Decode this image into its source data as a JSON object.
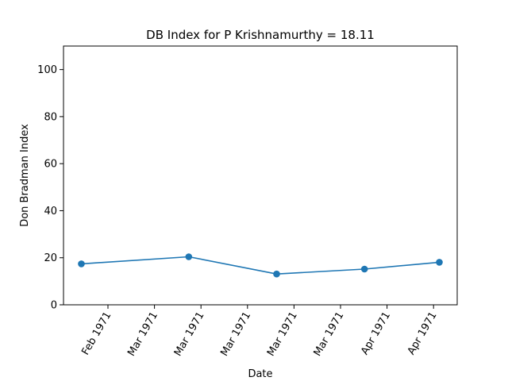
{
  "chart_data": {
    "type": "line",
    "title": "DB Index for P Krishnamurthy = 18.11",
    "xlabel": "Date",
    "ylabel": "Don Bradman Index",
    "ylim": [
      0,
      110
    ],
    "yticks": [
      0,
      20,
      40,
      60,
      80,
      100
    ],
    "x_tick_labels": [
      "Feb 1971",
      "Mar 1971",
      "Mar 1971",
      "Mar 1971",
      "Mar 1971",
      "Mar 1971",
      "Apr 1971",
      "Apr 1971"
    ],
    "grid": false,
    "series": [
      {
        "color": "#1f77b4",
        "marker": "circle",
        "points": [
          {
            "x": "1971-01-24",
            "y": 17.4
          },
          {
            "x": "1971-02-26",
            "y": 20.4
          },
          {
            "x": "1971-03-25",
            "y": 13.1
          },
          {
            "x": "1971-04-21",
            "y": 15.2
          },
          {
            "x": "1971-05-14",
            "y": 18.1
          }
        ]
      }
    ]
  }
}
